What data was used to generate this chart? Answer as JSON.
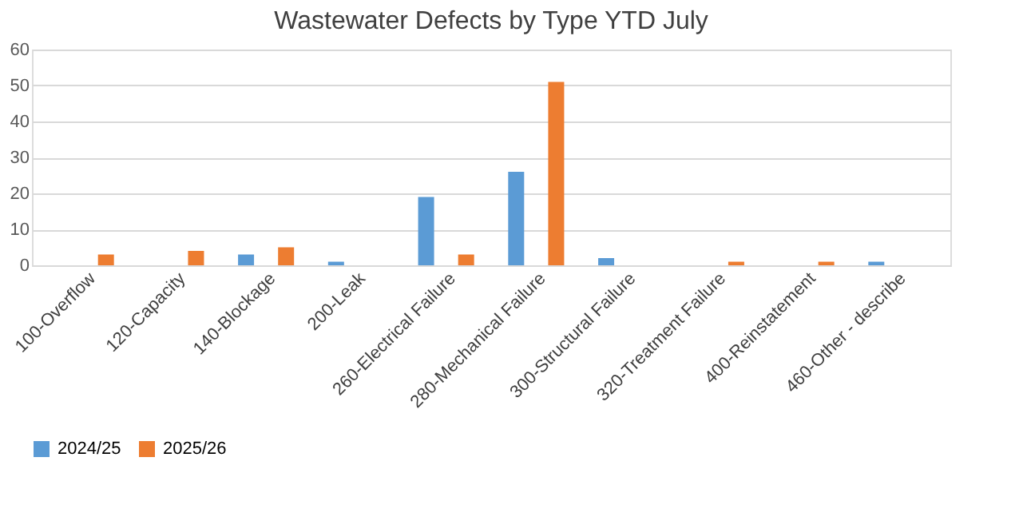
{
  "chart_data": {
    "type": "bar",
    "title": "Wastewater Defects by Type YTD July",
    "categories": [
      "100-Overflow",
      "120-Capacity",
      "140-Blockage",
      "200-Leak",
      "260-Electrical Failure",
      "280-Mechanical Failure",
      "300-Structural Failure",
      "320-Treatment Failure",
      "400-Reinstatement",
      "460-Other - describe"
    ],
    "series": [
      {
        "name": "2024/25",
        "color": "#5b9bd5",
        "values": [
          0,
          0,
          3,
          1,
          19,
          26,
          2,
          0,
          0,
          1
        ]
      },
      {
        "name": "2025/26",
        "color": "#ed7d31",
        "values": [
          3,
          4,
          5,
          0,
          3,
          51,
          0,
          1,
          1,
          0
        ]
      }
    ],
    "ylim": [
      0,
      60
    ],
    "yticks": [
      0,
      10,
      20,
      30,
      40,
      50,
      60
    ],
    "grid": "y",
    "legend": "bottom"
  }
}
